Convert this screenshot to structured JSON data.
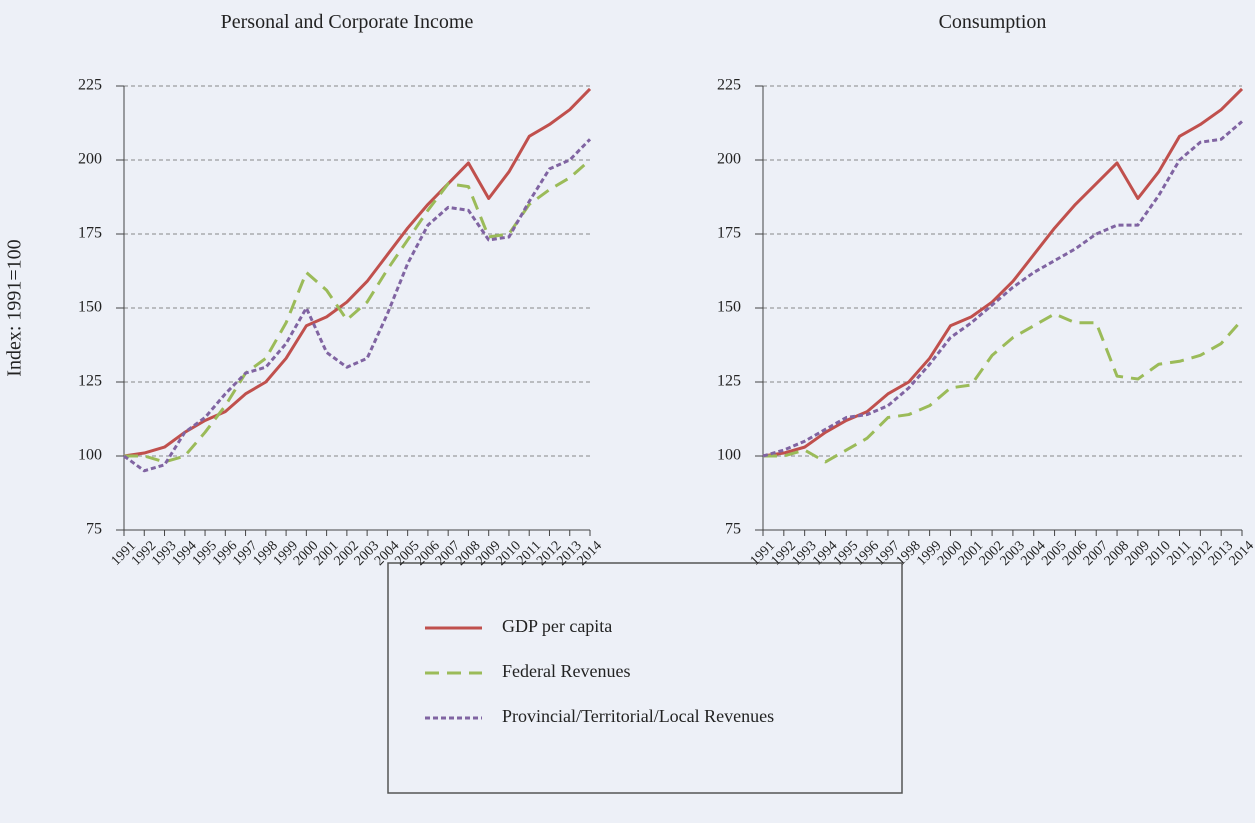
{
  "chart_data": [
    {
      "type": "line",
      "title": "Personal and Corporate Income",
      "y_label": "Index: 1991=100",
      "categories": [
        "1991",
        "1992",
        "1993",
        "1994",
        "1995",
        "1996",
        "1997",
        "1998",
        "1999",
        "2000",
        "2001",
        "2002",
        "2003",
        "2004",
        "2005",
        "2006",
        "2007",
        "2008",
        "2009",
        "2010",
        "2011",
        "2012",
        "2013",
        "2014"
      ],
      "ylim": [
        75,
        225
      ],
      "yticks": [
        75,
        100,
        125,
        150,
        175,
        200,
        225
      ],
      "grid": true,
      "series": [
        {
          "name": "GDP per capita",
          "color": "#c0504d",
          "dash": "solid",
          "values": [
            100,
            101,
            103,
            108,
            112,
            115,
            121,
            125,
            133,
            144,
            147,
            152,
            159,
            168,
            177,
            185,
            192,
            199,
            187,
            196,
            208,
            212,
            217,
            224
          ]
        },
        {
          "name": "Federal Revenues",
          "color": "#9bbb59",
          "dash": "dashed",
          "values": [
            100,
            100,
            98,
            100,
            108,
            117,
            128,
            133,
            145,
            162,
            156,
            146,
            152,
            163,
            173,
            183,
            192,
            191,
            174,
            175,
            185,
            190,
            194,
            200
          ]
        },
        {
          "name": "Provincial/Territorial/Local Revenues",
          "color": "#8064a2",
          "dash": "dotted",
          "values": [
            100,
            95,
            97,
            108,
            113,
            121,
            128,
            130,
            138,
            150,
            135,
            130,
            133,
            148,
            165,
            178,
            184,
            183,
            173,
            174,
            186,
            197,
            200,
            207
          ]
        }
      ]
    },
    {
      "type": "line",
      "title": "Consumption",
      "categories": [
        "1991",
        "1992",
        "1993",
        "1994",
        "1995",
        "1996",
        "1997",
        "1998",
        "1999",
        "2000",
        "2001",
        "2002",
        "2003",
        "2004",
        "2005",
        "2006",
        "2007",
        "2008",
        "2009",
        "2010",
        "2011",
        "2012",
        "2013",
        "2014"
      ],
      "ylim": [
        75,
        225
      ],
      "yticks": [
        75,
        100,
        125,
        150,
        175,
        200,
        225
      ],
      "grid": true,
      "series": [
        {
          "color": "#c0504d",
          "dash": "solid",
          "values": [
            100,
            101,
            103,
            108,
            112,
            115,
            121,
            125,
            133,
            144,
            147,
            152,
            159,
            168,
            177,
            185,
            192,
            199,
            187,
            196,
            208,
            212,
            217,
            224
          ]
        },
        {
          "color": "#9bbb59",
          "dash": "dashed",
          "values": [
            100,
            100,
            102,
            98,
            102,
            106,
            113,
            114,
            117,
            123,
            124,
            134,
            140,
            144,
            148,
            145,
            145,
            127,
            126,
            131,
            132,
            134,
            138,
            146
          ]
        },
        {
          "color": "#8064a2",
          "dash": "dotted",
          "values": [
            100,
            102,
            105,
            109,
            113,
            114,
            117,
            123,
            131,
            140,
            145,
            151,
            157,
            162,
            166,
            170,
            175,
            178,
            178,
            188,
            200,
            206,
            207,
            213
          ]
        }
      ]
    }
  ]
}
